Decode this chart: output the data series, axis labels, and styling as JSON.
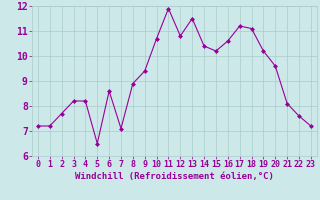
{
  "x": [
    0,
    1,
    2,
    3,
    4,
    5,
    6,
    7,
    8,
    9,
    10,
    11,
    12,
    13,
    14,
    15,
    16,
    17,
    18,
    19,
    20,
    21,
    22,
    23
  ],
  "y": [
    7.2,
    7.2,
    7.7,
    8.2,
    8.2,
    6.5,
    8.6,
    7.1,
    8.9,
    9.4,
    10.7,
    11.9,
    10.8,
    11.5,
    10.4,
    10.2,
    10.6,
    11.2,
    11.1,
    10.2,
    9.6,
    8.1,
    7.6,
    7.2
  ],
  "line_color": "#990099",
  "marker": "D",
  "marker_size": 2.0,
  "bg_color": "#cce8e8",
  "grid_color": "#aacccc",
  "xlabel": "Windchill (Refroidissement éolien,°C)",
  "xlabel_color": "#990099",
  "xlabel_fontsize": 6.5,
  "tick_color": "#990099",
  "tick_fontsize": 6,
  "ylim": [
    6,
    12
  ],
  "xlim": [
    -0.5,
    23.5
  ],
  "yticks": [
    6,
    7,
    8,
    9,
    10,
    11,
    12
  ],
  "xticks": [
    0,
    1,
    2,
    3,
    4,
    5,
    6,
    7,
    8,
    9,
    10,
    11,
    12,
    13,
    14,
    15,
    16,
    17,
    18,
    19,
    20,
    21,
    22,
    23
  ]
}
